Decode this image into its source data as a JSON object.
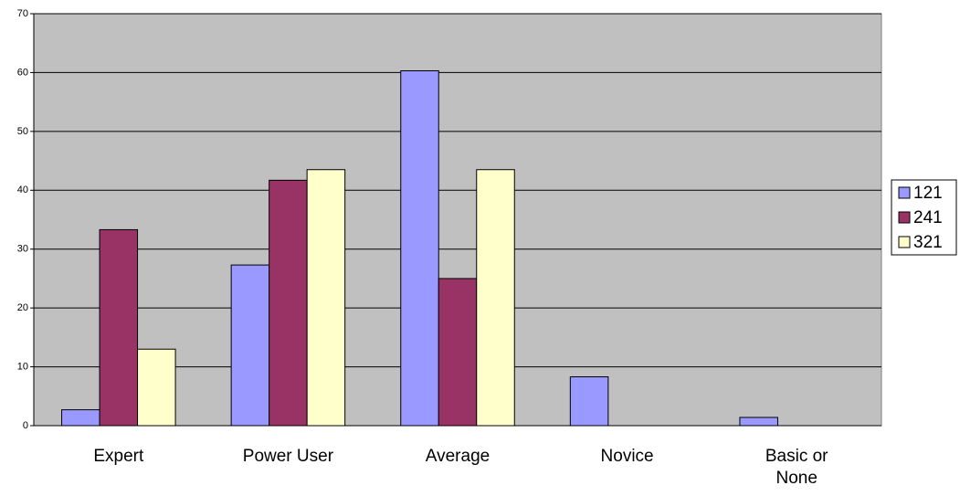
{
  "chart_data": {
    "type": "bar",
    "categories": [
      "Expert",
      "Power User",
      "Average",
      "Novice",
      "Basic or None"
    ],
    "series": [
      {
        "name": "121",
        "color": "#9999ff",
        "values": [
          2.7,
          27.3,
          60.3,
          8.3,
          1.4
        ]
      },
      {
        "name": "241",
        "color": "#993366",
        "values": [
          33.3,
          41.7,
          25,
          0,
          0
        ]
      },
      {
        "name": "321",
        "color": "#ffffcc",
        "values": [
          13,
          43.5,
          43.5,
          0,
          0
        ]
      }
    ],
    "ylim": [
      0,
      70
    ],
    "yticks": [
      0,
      10,
      20,
      30,
      40,
      50,
      60,
      70
    ],
    "grid": true,
    "legend": "right"
  }
}
